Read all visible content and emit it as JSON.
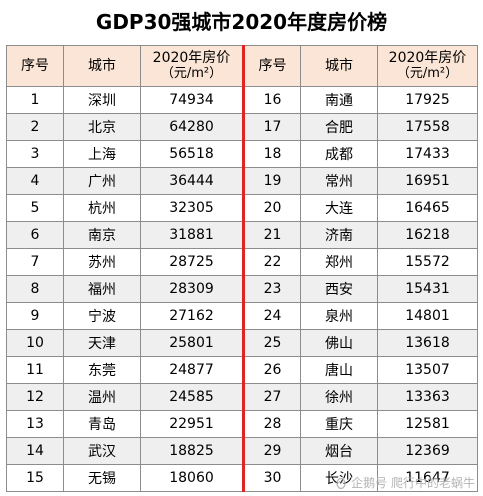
{
  "title": "GDP30强城市2020年度房价榜",
  "headers": {
    "rank": "序号",
    "city": "城市",
    "price_line1": "2020年房价",
    "price_line2": "（元/m²）"
  },
  "left": [
    {
      "rank": "1",
      "city": "深圳",
      "price": "74934"
    },
    {
      "rank": "2",
      "city": "北京",
      "price": "64280"
    },
    {
      "rank": "3",
      "city": "上海",
      "price": "56518"
    },
    {
      "rank": "4",
      "city": "广州",
      "price": "36444"
    },
    {
      "rank": "5",
      "city": "杭州",
      "price": "32305"
    },
    {
      "rank": "6",
      "city": "南京",
      "price": "31881"
    },
    {
      "rank": "7",
      "city": "苏州",
      "price": "28725"
    },
    {
      "rank": "8",
      "city": "福州",
      "price": "28309"
    },
    {
      "rank": "9",
      "city": "宁波",
      "price": "27162"
    },
    {
      "rank": "10",
      "city": "天津",
      "price": "25801"
    },
    {
      "rank": "11",
      "city": "东莞",
      "price": "24877"
    },
    {
      "rank": "12",
      "city": "温州",
      "price": "24585"
    },
    {
      "rank": "13",
      "city": "青岛",
      "price": "22951"
    },
    {
      "rank": "14",
      "city": "武汉",
      "price": "18825"
    },
    {
      "rank": "15",
      "city": "无锡",
      "price": "18060"
    }
  ],
  "right": [
    {
      "rank": "16",
      "city": "南通",
      "price": "17925"
    },
    {
      "rank": "17",
      "city": "合肥",
      "price": "17558"
    },
    {
      "rank": "18",
      "city": "成都",
      "price": "17433"
    },
    {
      "rank": "19",
      "city": "常州",
      "price": "16951"
    },
    {
      "rank": "20",
      "city": "大连",
      "price": "16465"
    },
    {
      "rank": "21",
      "city": "济南",
      "price": "16218"
    },
    {
      "rank": "22",
      "city": "郑州",
      "price": "15572"
    },
    {
      "rank": "23",
      "city": "西安",
      "price": "15431"
    },
    {
      "rank": "24",
      "city": "泉州",
      "price": "14801"
    },
    {
      "rank": "25",
      "city": "佛山",
      "price": "13618"
    },
    {
      "rank": "26",
      "city": "唐山",
      "price": "13507"
    },
    {
      "rank": "27",
      "city": "徐州",
      "price": "13363"
    },
    {
      "rank": "28",
      "city": "重庆",
      "price": "12581"
    },
    {
      "rank": "29",
      "city": "烟台",
      "price": "12369"
    },
    {
      "rank": "30",
      "city": "长沙",
      "price": "11647"
    }
  ],
  "watermark": {
    "text": "企鹅号 爬行中的老蜗牛",
    "icon": "penguin-logo-icon"
  },
  "colors": {
    "header_bg": "#fbe5d6",
    "divider": "#e02424",
    "stripe": "#efefef"
  }
}
